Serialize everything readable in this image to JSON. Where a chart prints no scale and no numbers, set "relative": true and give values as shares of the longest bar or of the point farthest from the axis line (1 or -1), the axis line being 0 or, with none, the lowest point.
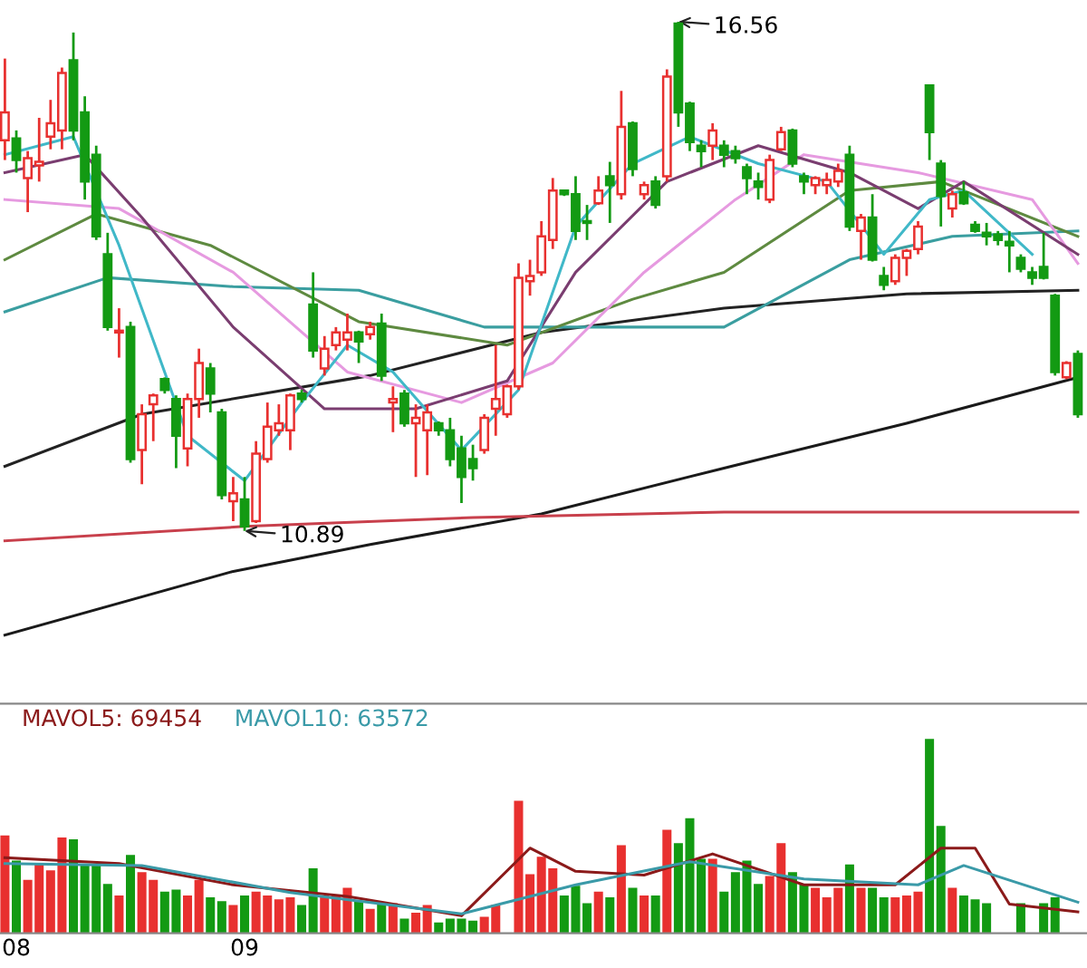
{
  "chart_data": [
    {
      "type": "candlestick",
      "categories": [
        null,
        null,
        null,
        null,
        null,
        null,
        null,
        null,
        null,
        null,
        null,
        null,
        null,
        null,
        null,
        null,
        null,
        null,
        null,
        null,
        null,
        null,
        null,
        null,
        null,
        null,
        null,
        null,
        null,
        null,
        null,
        null,
        null,
        null,
        null,
        null,
        null,
        null,
        null,
        null,
        null,
        null,
        null,
        null,
        null,
        null,
        null,
        null,
        null,
        null,
        null,
        null,
        null,
        null,
        null,
        null,
        null,
        null,
        null,
        null,
        null,
        null,
        null,
        null,
        null,
        null,
        null,
        null,
        null,
        null,
        null,
        null,
        null,
        null,
        null,
        null,
        null,
        null,
        null,
        null,
        null,
        null,
        null,
        null,
        null,
        null,
        null,
        null,
        null,
        null,
        null,
        null,
        null,
        null,
        null
      ],
      "ohlc": [
        [
          15.24,
          16.15,
          15.02,
          15.55
        ],
        [
          15.26,
          15.35,
          14.88,
          15.02
        ],
        [
          14.82,
          15.12,
          14.44,
          15.04
        ],
        [
          14.96,
          15.49,
          14.78,
          15.0
        ],
        [
          15.28,
          15.69,
          15.14,
          15.43
        ],
        [
          15.35,
          16.05,
          15.14,
          15.99
        ],
        [
          16.13,
          16.44,
          15.24,
          15.35
        ],
        [
          15.55,
          15.73,
          14.58,
          14.78
        ],
        [
          15.08,
          15.18,
          14.13,
          14.17
        ],
        [
          13.97,
          14.21,
          13.12,
          13.16
        ],
        [
          13.1,
          13.37,
          12.82,
          13.12
        ],
        [
          13.16,
          13.22,
          11.65,
          11.69
        ],
        [
          11.79,
          12.3,
          11.41,
          12.19
        ],
        [
          12.3,
          12.42,
          11.89,
          12.4
        ],
        [
          12.58,
          12.6,
          12.42,
          12.46
        ],
        [
          12.36,
          12.4,
          11.59,
          11.95
        ],
        [
          11.81,
          12.42,
          11.61,
          12.36
        ],
        [
          12.36,
          12.92,
          12.15,
          12.76
        ],
        [
          12.7,
          12.76,
          12.21,
          12.42
        ],
        [
          12.21,
          12.25,
          11.24,
          11.29
        ],
        [
          11.22,
          11.49,
          11.0,
          11.31
        ],
        [
          11.24,
          11.49,
          10.89,
          10.94
        ],
        [
          11.0,
          11.89,
          10.98,
          11.75
        ],
        [
          11.69,
          12.32,
          11.65,
          12.05
        ],
        [
          12.01,
          12.3,
          11.95,
          12.09
        ],
        [
          12.01,
          12.42,
          11.79,
          12.4
        ],
        [
          12.42,
          12.46,
          12.32,
          12.36
        ],
        [
          13.41,
          13.77,
          12.82,
          12.9
        ],
        [
          12.7,
          13.06,
          12.62,
          12.92
        ],
        [
          12.96,
          13.16,
          12.9,
          13.1
        ],
        [
          13.02,
          13.31,
          12.9,
          13.1
        ],
        [
          13.1,
          13.12,
          12.76,
          13.0
        ],
        [
          13.08,
          13.22,
          13.02,
          13.16
        ],
        [
          13.2,
          13.31,
          12.56,
          12.62
        ],
        [
          12.32,
          12.5,
          11.99,
          12.36
        ],
        [
          12.42,
          12.46,
          12.05,
          12.09
        ],
        [
          12.09,
          12.3,
          11.49,
          12.15
        ],
        [
          12.01,
          12.3,
          11.51,
          12.21
        ],
        [
          12.09,
          12.11,
          11.95,
          12.01
        ],
        [
          12.01,
          12.15,
          11.61,
          11.69
        ],
        [
          11.81,
          11.95,
          11.2,
          11.49
        ],
        [
          11.69,
          11.85,
          11.45,
          11.59
        ],
        [
          11.79,
          12.19,
          11.75,
          12.15
        ],
        [
          12.25,
          12.96,
          11.95,
          12.36
        ],
        [
          12.19,
          12.52,
          12.15,
          12.5
        ],
        [
          12.5,
          13.87,
          12.46,
          13.71
        ],
        [
          13.67,
          13.91,
          13.51,
          13.73
        ],
        [
          13.77,
          14.34,
          13.73,
          14.17
        ],
        [
          14.13,
          14.82,
          14.03,
          14.68
        ],
        [
          14.68,
          14.68,
          14.62,
          14.64
        ],
        [
          14.64,
          14.84,
          14.13,
          14.23
        ],
        [
          14.34,
          14.52,
          14.13,
          14.32
        ],
        [
          14.54,
          14.84,
          14.52,
          14.68
        ],
        [
          14.84,
          15.0,
          14.32,
          14.74
        ],
        [
          14.64,
          15.79,
          14.58,
          15.39
        ],
        [
          15.43,
          15.45,
          14.84,
          14.92
        ],
        [
          14.64,
          14.78,
          14.58,
          14.74
        ],
        [
          14.78,
          14.84,
          14.48,
          14.52
        ],
        [
          14.84,
          16.03,
          14.78,
          15.95
        ],
        [
          16.54,
          16.56,
          15.39,
          15.55
        ],
        [
          15.65,
          15.67,
          15.12,
          15.22
        ],
        [
          15.18,
          15.24,
          14.94,
          15.12
        ],
        [
          15.18,
          15.43,
          15.02,
          15.35
        ],
        [
          15.18,
          15.24,
          14.94,
          15.08
        ],
        [
          15.12,
          15.18,
          14.98,
          15.04
        ],
        [
          14.94,
          14.98,
          14.64,
          14.82
        ],
        [
          14.78,
          14.88,
          14.58,
          14.72
        ],
        [
          14.58,
          15.08,
          14.54,
          15.02
        ],
        [
          15.14,
          15.39,
          15.12,
          15.33
        ],
        [
          15.35,
          15.37,
          14.94,
          14.98
        ],
        [
          14.84,
          14.88,
          14.64,
          14.78
        ],
        [
          14.74,
          14.84,
          14.64,
          14.82
        ],
        [
          14.74,
          14.88,
          14.64,
          14.8
        ],
        [
          14.78,
          14.98,
          14.72,
          14.9
        ],
        [
          15.08,
          15.18,
          14.23,
          14.28
        ],
        [
          14.23,
          14.42,
          13.91,
          14.38
        ],
        [
          14.38,
          14.64,
          13.89,
          13.91
        ],
        [
          13.73,
          13.83,
          13.57,
          13.63
        ],
        [
          13.67,
          13.97,
          13.63,
          13.93
        ],
        [
          13.93,
          14.03,
          13.73,
          14.01
        ],
        [
          14.03,
          14.34,
          13.97,
          14.28
        ],
        [
          15.85,
          15.85,
          15.02,
          15.33
        ],
        [
          14.98,
          15.02,
          14.28,
          14.62
        ],
        [
          14.48,
          14.68,
          14.38,
          14.64
        ],
        [
          14.66,
          14.78,
          14.52,
          14.54
        ],
        [
          14.3,
          14.34,
          14.21,
          14.23
        ],
        [
          14.21,
          14.32,
          14.07,
          14.17
        ],
        [
          14.19,
          14.23,
          14.07,
          14.13
        ],
        [
          14.11,
          14.23,
          13.77,
          14.07
        ],
        [
          13.93,
          13.97,
          13.77,
          13.81
        ],
        [
          13.77,
          13.83,
          13.63,
          13.71
        ],
        [
          13.83,
          14.21,
          13.69,
          13.71
        ],
        [
          13.51,
          13.53,
          12.62,
          12.66
        ],
        [
          12.6,
          12.78,
          12.58,
          12.76
        ],
        [
          12.86,
          12.9,
          12.15,
          12.19
        ]
      ],
      "series": [
        {
          "type": "line",
          "color": "#1a1a1a",
          "values": [
            9.73,
            null,
            null,
            null,
            null,
            null,
            null,
            null,
            null,
            null,
            null,
            null,
            null,
            null,
            null,
            null,
            null,
            null,
            null,
            null,
            10.44,
            null,
            null,
            null,
            null,
            null,
            null,
            null,
            null,
            null,
            null,
            null,
            10.74,
            null,
            null,
            null,
            null,
            null,
            null,
            null,
            null,
            null,
            null,
            null,
            null,
            null,
            null,
            11.08,
            null,
            null,
            null,
            null,
            null,
            null,
            null,
            null,
            null,
            null,
            null,
            null,
            null,
            null,
            null,
            11.59,
            null,
            null,
            null,
            null,
            null,
            null,
            null,
            null,
            null,
            null,
            null,
            null,
            null,
            null,
            null,
            12.09,
            null,
            null,
            null,
            null,
            null,
            null,
            null,
            null,
            null,
            null,
            null,
            null,
            null,
            null,
            12.6
          ]
        },
        {
          "type": "line",
          "color": "#222222",
          "values": [
            11.61,
            null,
            null,
            null,
            null,
            null,
            null,
            null,
            null,
            null,
            null,
            null,
            12.19,
            null,
            null,
            null,
            null,
            null,
            null,
            null,
            null,
            null,
            null,
            null,
            null,
            null,
            null,
            null,
            null,
            null,
            null,
            null,
            12.62,
            null,
            null,
            null,
            null,
            null,
            null,
            null,
            null,
            null,
            null,
            null,
            null,
            null,
            null,
            13.1,
            null,
            null,
            null,
            null,
            null,
            null,
            null,
            null,
            null,
            null,
            null,
            null,
            null,
            null,
            null,
            13.37,
            null,
            null,
            null,
            null,
            null,
            null,
            null,
            null,
            null,
            null,
            null,
            null,
            null,
            null,
            null,
            13.53,
            null,
            null,
            null,
            null,
            null,
            null,
            null,
            null,
            null,
            null,
            null,
            null,
            null,
            null,
            13.57
          ]
        },
        {
          "type": "line",
          "color": "#c8404c",
          "values": [
            10.78,
            null,
            null,
            null,
            null,
            null,
            null,
            null,
            null,
            null,
            null,
            null,
            null,
            null,
            null,
            null,
            null,
            null,
            null,
            null,
            null,
            10.94,
            null,
            null,
            null,
            null,
            null,
            null,
            null,
            null,
            null,
            null,
            null,
            null,
            null,
            null,
            null,
            null,
            null,
            null,
            null,
            11.04,
            null,
            null,
            null,
            null,
            null,
            null,
            null,
            null,
            null,
            null,
            null,
            null,
            null,
            null,
            null,
            null,
            null,
            null,
            null,
            null,
            null,
            11.1,
            null,
            null,
            null,
            null,
            null,
            null,
            null,
            null,
            null,
            null,
            null,
            null,
            null,
            null,
            null,
            null,
            null,
            null,
            null,
            null,
            null,
            null,
            null,
            null,
            null,
            null,
            null,
            null,
            null,
            null,
            11.1
          ]
        },
        {
          "type": "line",
          "color": "#3a9ea0",
          "values": [
            13.33,
            null,
            null,
            null,
            null,
            null,
            null,
            null,
            null,
            13.71,
            null,
            null,
            null,
            null,
            null,
            null,
            null,
            null,
            null,
            null,
            13.61,
            null,
            null,
            null,
            null,
            null,
            null,
            null,
            null,
            null,
            null,
            13.57,
            null,
            null,
            null,
            null,
            null,
            null,
            null,
            null,
            null,
            null,
            13.16,
            null,
            null,
            null,
            null,
            null,
            null,
            null,
            null,
            null,
            null,
            null,
            null,
            null,
            null,
            null,
            null,
            null,
            null,
            null,
            null,
            13.16,
            null,
            null,
            null,
            null,
            null,
            null,
            null,
            null,
            null,
            null,
            13.91,
            null,
            null,
            null,
            null,
            null,
            null,
            null,
            null,
            14.17,
            null,
            null,
            null,
            null,
            null,
            null,
            null,
            null,
            null,
            null,
            14.23
          ]
        },
        {
          "type": "line",
          "color": "#5e8a40",
          "values": [
            13.91,
            null,
            null,
            null,
            null,
            null,
            null,
            null,
            14.42,
            null,
            null,
            null,
            null,
            null,
            null,
            null,
            null,
            null,
            14.07,
            null,
            null,
            null,
            null,
            null,
            null,
            null,
            null,
            null,
            null,
            null,
            null,
            13.22,
            null,
            null,
            null,
            null,
            null,
            null,
            null,
            null,
            null,
            null,
            null,
            null,
            12.96,
            null,
            null,
            null,
            null,
            null,
            null,
            null,
            null,
            null,
            null,
            13.47,
            null,
            null,
            null,
            null,
            null,
            null,
            null,
            13.77,
            null,
            null,
            null,
            null,
            null,
            null,
            null,
            null,
            null,
            null,
            14.68,
            null,
            null,
            null,
            null,
            null,
            null,
            null,
            14.78,
            null,
            null,
            null,
            null,
            null,
            null,
            null,
            null,
            null,
            null,
            null,
            14.17
          ]
        },
        {
          "type": "line",
          "color": "#e69ae0",
          "values": [
            14.58,
            null,
            null,
            null,
            null,
            null,
            null,
            null,
            null,
            null,
            14.48,
            null,
            null,
            null,
            null,
            null,
            null,
            null,
            null,
            null,
            13.77,
            null,
            null,
            null,
            null,
            null,
            null,
            null,
            null,
            null,
            12.66,
            null,
            null,
            null,
            null,
            null,
            null,
            null,
            null,
            null,
            12.32,
            null,
            null,
            null,
            null,
            null,
            null,
            null,
            12.76,
            null,
            null,
            null,
            null,
            null,
            null,
            null,
            13.77,
            null,
            null,
            null,
            null,
            null,
            null,
            null,
            14.58,
            null,
            null,
            null,
            null,
            null,
            15.08,
            null,
            null,
            null,
            null,
            null,
            null,
            null,
            null,
            null,
            14.88,
            null,
            null,
            null,
            null,
            null,
            null,
            null,
            null,
            null,
            14.58,
            null,
            null,
            null,
            13.87
          ]
        },
        {
          "type": "line",
          "color": "#7a3d70",
          "values": [
            14.88,
            null,
            null,
            null,
            null,
            null,
            null,
            15.08,
            null,
            null,
            null,
            null,
            14.38,
            null,
            null,
            null,
            null,
            null,
            null,
            null,
            13.16,
            null,
            null,
            null,
            null,
            null,
            null,
            null,
            12.25,
            null,
            null,
            null,
            null,
            null,
            null,
            null,
            12.25,
            null,
            null,
            null,
            null,
            null,
            null,
            null,
            12.56,
            null,
            null,
            null,
            null,
            null,
            13.77,
            null,
            null,
            null,
            null,
            null,
            null,
            null,
            14.78,
            null,
            null,
            null,
            null,
            null,
            null,
            null,
            15.18,
            null,
            null,
            null,
            null,
            null,
            null,
            null,
            14.88,
            null,
            null,
            null,
            null,
            null,
            14.48,
            null,
            null,
            null,
            14.78,
            null,
            null,
            null,
            null,
            null,
            null,
            null,
            null,
            null,
            13.97
          ]
        },
        {
          "type": "line",
          "color": "#40b8c8",
          "values": [
            15.08,
            null,
            null,
            null,
            null,
            null,
            15.28,
            null,
            null,
            null,
            14.07,
            null,
            null,
            null,
            null,
            null,
            11.95,
            null,
            null,
            null,
            null,
            11.45,
            null,
            null,
            null,
            null,
            12.32,
            null,
            null,
            null,
            12.96,
            null,
            null,
            null,
            12.66,
            null,
            null,
            null,
            null,
            null,
            11.79,
            null,
            null,
            null,
            null,
            12.46,
            null,
            null,
            null,
            null,
            14.28,
            null,
            null,
            null,
            null,
            14.98,
            null,
            null,
            null,
            null,
            15.28,
            null,
            null,
            null,
            null,
            null,
            14.98,
            null,
            null,
            null,
            null,
            null,
            14.78,
            null,
            null,
            null,
            null,
            13.97,
            null,
            null,
            null,
            14.58,
            null,
            null,
            14.68,
            null,
            null,
            null,
            null,
            null,
            13.97,
            null,
            null,
            null,
            null
          ]
        }
      ],
      "tick_labels": false,
      "annotations": [
        "16.56",
        "10.89"
      ]
    },
    {
      "type": "bar",
      "relative": true,
      "categories": [
        null,
        "08",
        null,
        null,
        null,
        null,
        null,
        null,
        null,
        null,
        null,
        null,
        null,
        null,
        null,
        null,
        null,
        null,
        null,
        null,
        null,
        "09",
        null,
        null,
        null,
        null,
        null,
        null,
        null,
        null,
        null,
        null,
        null,
        null,
        null,
        null,
        null,
        null,
        null,
        null,
        null,
        null,
        null,
        null,
        null,
        null,
        null,
        null,
        null,
        null,
        null,
        null,
        null,
        null,
        null,
        null,
        null,
        null,
        null,
        null,
        null,
        null,
        null,
        null,
        null,
        null,
        null,
        null,
        null,
        null,
        null,
        null,
        null,
        null,
        null,
        null,
        null,
        null,
        null,
        null,
        null,
        null,
        null,
        null,
        null,
        null,
        null,
        null,
        null,
        null,
        null,
        null,
        null,
        null,
        null
      ],
      "series": [
        {
          "type": "bar",
          "values": [
            0.5,
            0.37,
            0.27,
            0.35,
            0.32,
            0.49,
            0.48,
            0.35,
            0.35,
            0.25,
            0.19,
            0.4,
            0.31,
            0.27,
            0.21,
            0.22,
            0.19,
            0.27,
            0.18,
            0.16,
            0.14,
            0.19,
            0.21,
            0.19,
            0.17,
            0.18,
            0.14,
            0.33,
            0.19,
            0.19,
            0.23,
            0.16,
            0.12,
            0.15,
            0.15,
            0.07,
            0.1,
            0.14,
            0.05,
            0.07,
            0.07,
            0.06,
            0.08,
            0.14,
            null,
            0.68,
            0.3,
            0.39,
            0.33,
            0.19,
            0.24,
            0.15,
            0.21,
            0.18,
            0.45,
            0.23,
            0.19,
            0.19,
            0.53,
            0.46,
            0.59,
            0.38,
            0.38,
            0.21,
            0.31,
            0.37,
            0.25,
            0.29,
            0.46,
            0.31,
            0.25,
            0.23,
            0.18,
            0.23,
            0.35,
            0.23,
            0.23,
            0.18,
            0.18,
            0.19,
            0.21,
            1,
            0.55,
            0.23,
            0.19,
            0.17,
            0.15,
            null,
            null,
            0.15,
            null,
            0.15,
            0.18,
            null,
            null
          ],
          "colors": [
            "#e8302f",
            "#139a13",
            "#e8302f",
            "#e8302f",
            "#e8302f",
            "#e8302f",
            "#139a13",
            "#139a13",
            "#139a13",
            "#139a13",
            "#e8302f",
            "#139a13",
            "#e8302f",
            "#e8302f",
            "#139a13",
            "#139a13",
            "#e8302f",
            "#e8302f",
            "#139a13",
            "#139a13",
            "#e8302f",
            "#139a13",
            "#e8302f",
            "#e8302f",
            "#e8302f",
            "#e8302f",
            "#139a13",
            "#139a13",
            "#e8302f",
            "#e8302f",
            "#e8302f",
            "#139a13",
            "#e8302f",
            "#139a13",
            "#e8302f",
            "#139a13",
            "#e8302f",
            "#e8302f",
            "#139a13",
            "#139a13",
            "#139a13",
            "#139a13",
            "#e8302f",
            "#e8302f",
            "#e8302f",
            "#e8302f",
            "#e8302f",
            "#e8302f",
            "#e8302f",
            "#139a13",
            "#139a13",
            "#139a13",
            "#e8302f",
            "#139a13",
            "#e8302f",
            "#139a13",
            "#e8302f",
            "#139a13",
            "#e8302f",
            "#139a13",
            "#139a13",
            "#139a13",
            "#e8302f",
            "#139a13",
            "#139a13",
            "#139a13",
            "#139a13",
            "#e8302f",
            "#e8302f",
            "#139a13",
            "#139a13",
            "#e8302f",
            "#e8302f",
            "#e8302f",
            "#139a13",
            "#e8302f",
            "#139a13",
            "#139a13",
            "#e8302f",
            "#e8302f",
            "#e8302f",
            "#139a13",
            "#139a13",
            "#e8302f",
            "#139a13",
            "#139a13",
            "#139a13",
            "#139a13",
            "#139a13",
            "#139a13",
            "#139a13",
            "#139a13",
            "#139a13",
            "#e8302f",
            "#139a13"
          ]
        },
        {
          "type": "line",
          "color": "#8b1a1a",
          "values": [
            0.39,
            null,
            null,
            null,
            null,
            null,
            null,
            null,
            null,
            null,
            0.36,
            null,
            null,
            null,
            null,
            null,
            null,
            null,
            null,
            null,
            0.25,
            null,
            null,
            null,
            null,
            null,
            null,
            null,
            null,
            null,
            0.19,
            null,
            null,
            null,
            null,
            null,
            null,
            null,
            null,
            null,
            0.09,
            null,
            null,
            null,
            null,
            null,
            0.44,
            null,
            null,
            null,
            0.32,
            null,
            null,
            null,
            null,
            null,
            0.3,
            null,
            null,
            null,
            null,
            null,
            0.41,
            null,
            null,
            null,
            null,
            null,
            null,
            null,
            0.25,
            null,
            null,
            null,
            null,
            null,
            null,
            null,
            0.25,
            null,
            null,
            null,
            0.44,
            null,
            null,
            0.44,
            null,
            null,
            0.15,
            null,
            null,
            null,
            null,
            null,
            0.11
          ]
        },
        {
          "type": "line",
          "color": "#3a9aa8",
          "values": [
            0.36,
            null,
            null,
            null,
            null,
            null,
            null,
            null,
            null,
            null,
            null,
            null,
            0.35,
            null,
            null,
            null,
            null,
            null,
            null,
            null,
            null,
            null,
            null,
            null,
            null,
            0.21,
            null,
            null,
            null,
            null,
            null,
            null,
            null,
            null,
            null,
            null,
            null,
            null,
            null,
            null,
            0.1,
            null,
            null,
            null,
            null,
            null,
            null,
            null,
            null,
            null,
            0.25,
            null,
            null,
            null,
            null,
            null,
            null,
            null,
            null,
            null,
            0.37,
            null,
            null,
            null,
            null,
            null,
            null,
            null,
            null,
            null,
            0.28,
            null,
            null,
            null,
            null,
            null,
            null,
            null,
            null,
            null,
            0.25,
            null,
            null,
            null,
            0.35,
            null,
            null,
            null,
            null,
            null,
            null,
            null,
            null,
            null,
            0.16
          ]
        }
      ],
      "tick_labels": "x",
      "annotations": [
        "MAVOL5: 69454",
        "MAVOL10: 63572"
      ]
    }
  ]
}
